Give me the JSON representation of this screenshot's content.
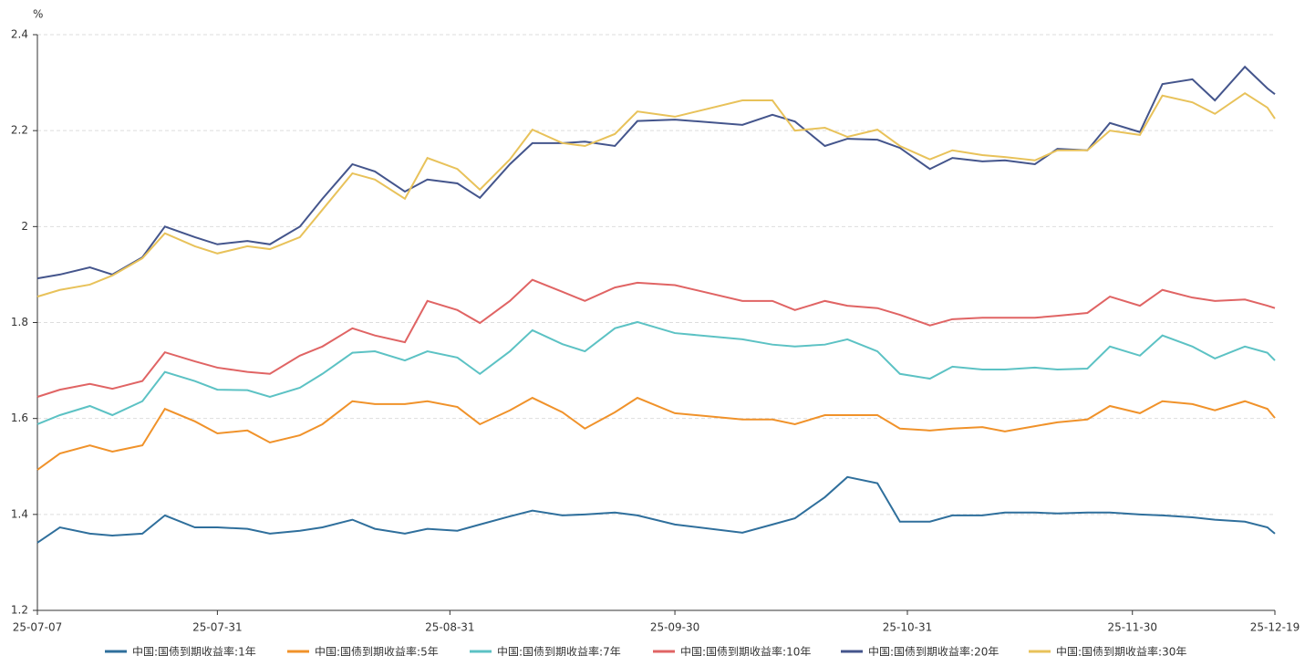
{
  "chart_data": {
    "type": "line",
    "y_label": "%",
    "x": [
      "25-07-07",
      "25-07-10",
      "25-07-14",
      "25-07-17",
      "25-07-21",
      "25-07-24",
      "25-07-28",
      "25-07-31",
      "25-08-04",
      "25-08-07",
      "25-08-11",
      "25-08-14",
      "25-08-18",
      "25-08-21",
      "25-08-25",
      "25-08-28",
      "25-09-01",
      "25-09-04",
      "25-09-08",
      "25-09-11",
      "25-09-15",
      "25-09-18",
      "25-09-22",
      "25-09-25",
      "25-09-30",
      "25-10-09",
      "25-10-13",
      "25-10-16",
      "25-10-20",
      "25-10-23",
      "25-10-27",
      "25-10-30",
      "25-11-03",
      "25-11-06",
      "25-11-10",
      "25-11-13",
      "25-11-17",
      "25-11-20",
      "25-11-24",
      "25-11-27",
      "25-12-01",
      "25-12-04",
      "25-12-08",
      "25-12-11",
      "25-12-15",
      "25-12-18",
      "25-12-19"
    ],
    "series": [
      {
        "name": "中国:国债到期收益率:1年",
        "color": "#2f6f9c",
        "values": [
          1.341,
          1.373,
          1.36,
          1.356,
          1.36,
          1.398,
          1.373,
          1.373,
          1.37,
          1.36,
          1.366,
          1.373,
          1.389,
          1.37,
          1.36,
          1.37,
          1.366,
          1.379,
          1.396,
          1.408,
          1.398,
          1.4,
          1.404,
          1.398,
          1.379,
          1.362,
          1.379,
          1.392,
          1.436,
          1.478,
          1.465,
          1.385,
          1.385,
          1.398,
          1.398,
          1.404,
          1.404,
          1.402,
          1.404,
          1.404,
          1.4,
          1.398,
          1.394,
          1.389,
          1.385,
          1.373,
          1.36
        ]
      },
      {
        "name": "中国:国债到期收益率:5年",
        "color": "#f0922a",
        "values": [
          1.493,
          1.527,
          1.544,
          1.531,
          1.544,
          1.62,
          1.594,
          1.569,
          1.575,
          1.55,
          1.565,
          1.588,
          1.636,
          1.63,
          1.63,
          1.636,
          1.624,
          1.588,
          1.617,
          1.643,
          1.613,
          1.579,
          1.613,
          1.643,
          1.611,
          1.598,
          1.598,
          1.588,
          1.607,
          1.607,
          1.607,
          1.579,
          1.575,
          1.579,
          1.582,
          1.573,
          1.584,
          1.592,
          1.598,
          1.626,
          1.611,
          1.636,
          1.63,
          1.617,
          1.636,
          1.62,
          1.601
        ]
      },
      {
        "name": "中国:国债到期收益率:7年",
        "color": "#5cc2c4",
        "values": [
          1.588,
          1.607,
          1.626,
          1.607,
          1.636,
          1.697,
          1.678,
          1.66,
          1.659,
          1.645,
          1.664,
          1.693,
          1.737,
          1.74,
          1.721,
          1.74,
          1.727,
          1.693,
          1.74,
          1.784,
          1.755,
          1.74,
          1.788,
          1.801,
          1.778,
          1.765,
          1.754,
          1.75,
          1.754,
          1.765,
          1.74,
          1.693,
          1.683,
          1.708,
          1.702,
          1.702,
          1.706,
          1.702,
          1.704,
          1.75,
          1.731,
          1.773,
          1.75,
          1.725,
          1.75,
          1.737,
          1.721
        ]
      },
      {
        "name": "中国:国债到期收益率:10年",
        "color": "#e06464",
        "values": [
          1.645,
          1.66,
          1.672,
          1.662,
          1.678,
          1.738,
          1.719,
          1.706,
          1.697,
          1.693,
          1.731,
          1.75,
          1.788,
          1.773,
          1.759,
          1.845,
          1.826,
          1.799,
          1.845,
          1.889,
          1.864,
          1.845,
          1.873,
          1.883,
          1.878,
          1.845,
          1.845,
          1.826,
          1.845,
          1.835,
          1.83,
          1.816,
          1.794,
          1.807,
          1.81,
          1.81,
          1.81,
          1.814,
          1.82,
          1.854,
          1.835,
          1.868,
          1.852,
          1.845,
          1.848,
          1.835,
          1.83
        ]
      },
      {
        "name": "中国:国债到期收益率:20年",
        "color": "#44558c",
        "values": [
          1.892,
          1.9,
          1.915,
          1.9,
          1.936,
          2.0,
          1.978,
          1.963,
          1.97,
          1.963,
          2.0,
          2.058,
          2.13,
          2.115,
          2.073,
          2.098,
          2.09,
          2.06,
          2.13,
          2.174,
          2.174,
          2.177,
          2.168,
          2.22,
          2.223,
          2.212,
          2.233,
          2.219,
          2.168,
          2.183,
          2.181,
          2.164,
          2.12,
          2.143,
          2.136,
          2.138,
          2.13,
          2.162,
          2.159,
          2.216,
          2.197,
          2.297,
          2.307,
          2.263,
          2.333,
          2.288,
          2.276
        ]
      },
      {
        "name": "中国:国债到期收益率:30年",
        "color": "#e8c25a",
        "values": [
          1.854,
          1.868,
          1.879,
          1.898,
          1.934,
          1.986,
          1.959,
          1.944,
          1.959,
          1.953,
          1.978,
          2.035,
          2.111,
          2.098,
          2.058,
          2.143,
          2.12,
          2.077,
          2.14,
          2.202,
          2.174,
          2.168,
          2.193,
          2.24,
          2.229,
          2.263,
          2.263,
          2.2,
          2.206,
          2.187,
          2.202,
          2.168,
          2.14,
          2.159,
          2.149,
          2.145,
          2.138,
          2.159,
          2.159,
          2.2,
          2.191,
          2.273,
          2.259,
          2.235,
          2.278,
          2.248,
          2.225
        ]
      }
    ],
    "xlim": [
      "25-07-07",
      "25-12-19"
    ],
    "xticks": [
      "25-07-07",
      "25-07-31",
      "25-08-31",
      "25-09-30",
      "25-10-31",
      "25-11-30",
      "25-12-19"
    ],
    "ylim": [
      1.2,
      2.4
    ],
    "yticks": [
      1.2,
      1.4,
      1.6,
      1.8,
      2,
      2.2,
      2.4
    ],
    "grid": true,
    "legend": "bottom"
  }
}
